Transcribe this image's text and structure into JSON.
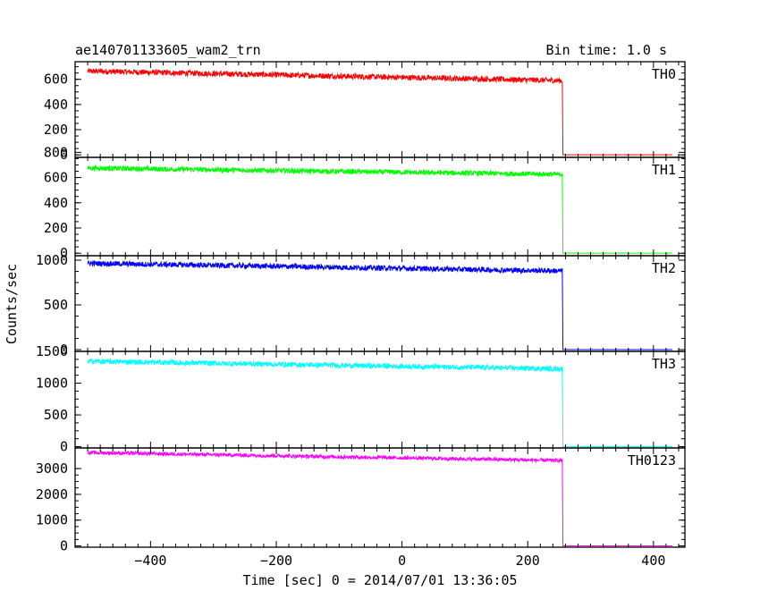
{
  "chart_data": {
    "type": "line",
    "title": "ae140701133605_wam2_trn",
    "bin_time_label": "Bin time: 1.0 s",
    "xlabel": "Time [sec] 0 = 2014/07/01 13:36:05",
    "ylabel": "Counts/sec",
    "xlim": [
      -520,
      450
    ],
    "x_ticks": [
      -400,
      -200,
      0,
      200,
      400
    ],
    "grid": false,
    "panels": [
      {
        "name": "TH0",
        "color": "#ff0000",
        "ylim": [
          -20,
          740
        ],
        "y_ticks": [
          0,
          200,
          400,
          600,
          800
        ],
        "x": [
          -500,
          255,
          256,
          430
        ],
        "y_start": 665,
        "y_end": 590,
        "y_after": 0,
        "noise": 45
      },
      {
        "name": "TH1",
        "color": "#00ff00",
        "ylim": [
          -20,
          760
        ],
        "y_ticks": [
          0,
          200,
          400,
          600,
          800
        ],
        "x": [
          -500,
          255,
          256,
          430
        ],
        "y_start": 675,
        "y_end": 625,
        "y_after": 0,
        "noise": 40
      },
      {
        "name": "TH2",
        "color": "#0000ff",
        "ylim": [
          -20,
          1050
        ],
        "y_ticks": [
          0,
          500,
          1000,
          1500
        ],
        "x": [
          -500,
          255,
          256,
          430
        ],
        "y_start": 965,
        "y_end": 880,
        "y_after": 0,
        "noise": 60
      },
      {
        "name": "TH3",
        "color": "#00ffff",
        "ylim": [
          -20,
          1500
        ],
        "y_ticks": [
          0,
          500,
          1000,
          1500
        ],
        "x": [
          -500,
          255,
          256,
          430
        ],
        "y_start": 1345,
        "y_end": 1225,
        "y_after": 0,
        "noise": 80
      },
      {
        "name": "TH0123",
        "color": "#ff00ff",
        "ylim": [
          -50,
          3800
        ],
        "y_ticks": [
          0,
          1000,
          2000,
          3000
        ],
        "x": [
          -500,
          255,
          256,
          430
        ],
        "y_start": 3620,
        "y_end": 3310,
        "y_after": 0,
        "noise": 140
      }
    ]
  }
}
